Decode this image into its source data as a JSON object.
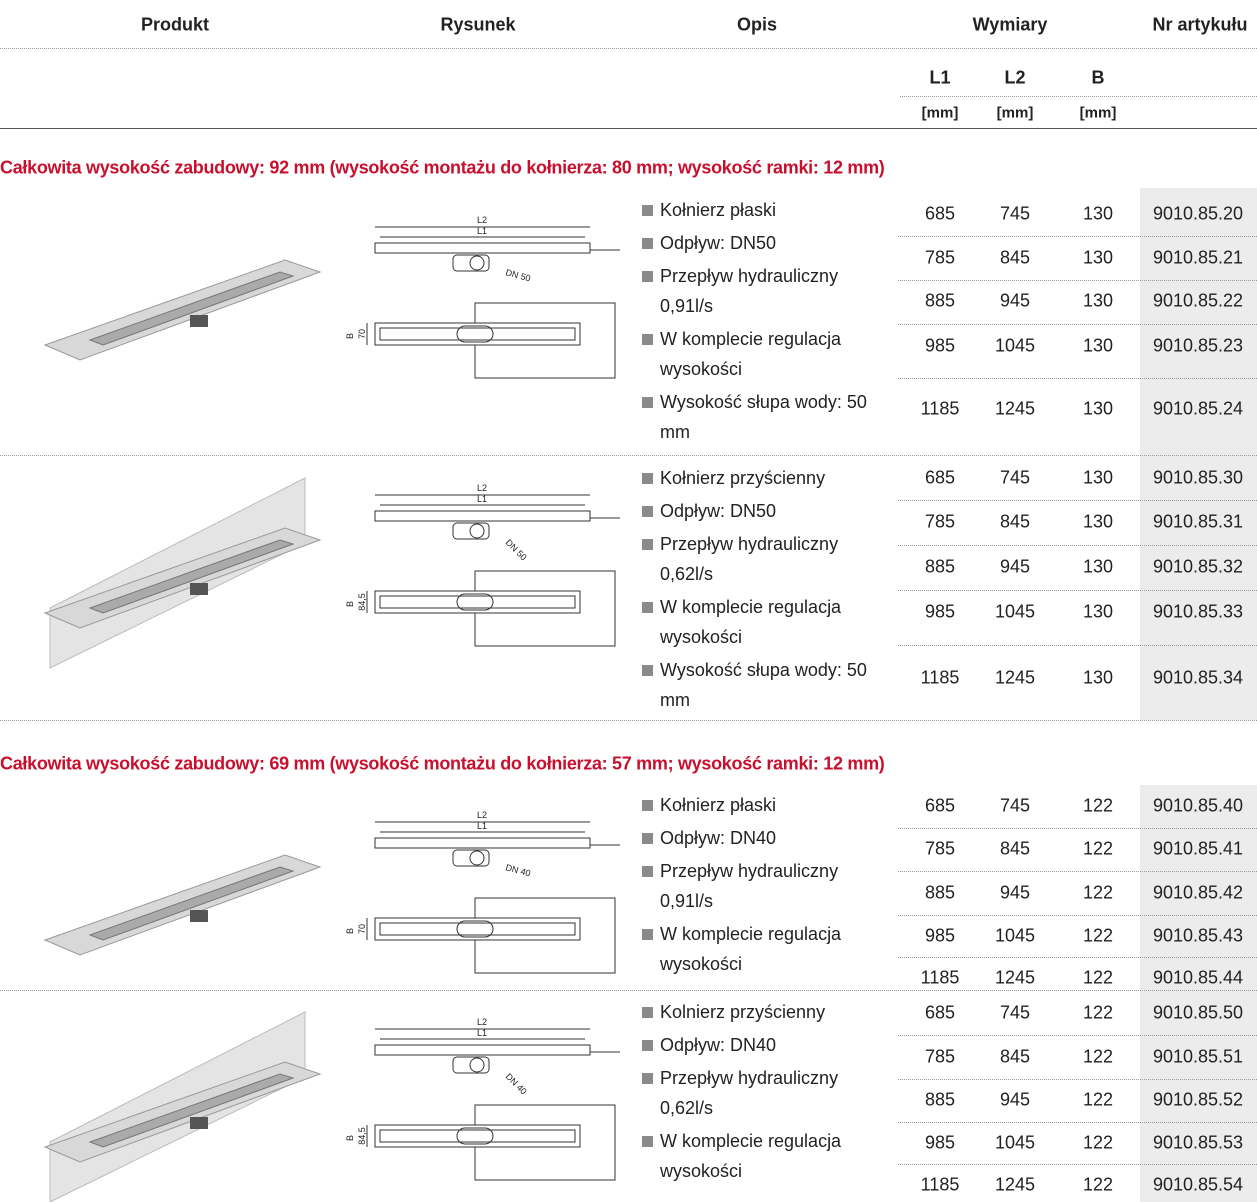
{
  "header": {
    "columns": [
      "Produkt",
      "Rysunek",
      "Opis",
      "Wymiary",
      "Nr artykułu"
    ],
    "dimensions": [
      {
        "name": "L1",
        "unit": "[mm]"
      },
      {
        "name": "L2",
        "unit": "[mm]"
      },
      {
        "name": "B",
        "unit": "[mm]"
      }
    ]
  },
  "sections": [
    {
      "title": "Całkowita wysokość zabudowy: 92 mm (wysokość montażu do kołnierza: 80 mm; wysokość ramki: 12 mm)",
      "groups": [
        {
          "description": [
            "Kołnierz płaski",
            "Odpływ: DN50",
            "Przepływ hydrauliczny 0,91l/s",
            "W komplecie regulacja wysokości",
            "Wysokość słupa wody: 50 mm"
          ],
          "drawing_labels": [
            "L2",
            "L1",
            "DN 50",
            "B",
            "70"
          ],
          "rows": [
            [
              685,
              745,
              130,
              "9010.85.20"
            ],
            [
              785,
              845,
              130,
              "9010.85.21"
            ],
            [
              885,
              945,
              130,
              "9010.85.22"
            ],
            [
              985,
              1045,
              130,
              "9010.85.23"
            ],
            [
              1185,
              1245,
              130,
              "9010.85.24"
            ]
          ]
        },
        {
          "description": [
            "Kołnierz przyścienny",
            "Odpływ: DN50",
            "Przepływ hydrauliczny 0,62l/s",
            "W komplecie regulacja wysokości",
            "Wysokość słupa wody: 50 mm"
          ],
          "drawing_labels": [
            "L2",
            "L1",
            "DN 50",
            "B",
            "84,5"
          ],
          "rows": [
            [
              685,
              745,
              130,
              "9010.85.30"
            ],
            [
              785,
              845,
              130,
              "9010.85.31"
            ],
            [
              885,
              945,
              130,
              "9010.85.32"
            ],
            [
              985,
              1045,
              130,
              "9010.85.33"
            ],
            [
              1185,
              1245,
              130,
              "9010.85.34"
            ]
          ]
        }
      ]
    },
    {
      "title": "Całkowita wysokość zabudowy: 69 mm (wysokość montażu do kołnierza: 57 mm; wysokość ramki: 12 mm)",
      "groups": [
        {
          "description": [
            "Kołnierz płaski",
            "Odpływ: DN40",
            "Przepływ hydrauliczny 0,91l/s",
            "W komplecie regulacja wysokości"
          ],
          "drawing_labels": [
            "L2",
            "L1",
            "DN 40",
            "B",
            "70"
          ],
          "rows": [
            [
              685,
              745,
              122,
              "9010.85.40"
            ],
            [
              785,
              845,
              122,
              "9010.85.41"
            ],
            [
              885,
              945,
              122,
              "9010.85.42"
            ],
            [
              985,
              1045,
              122,
              "9010.85.43"
            ],
            [
              1185,
              1245,
              122,
              "9010.85.44"
            ]
          ]
        },
        {
          "description": [
            "Kolnierz przyścienny",
            "Odpływ: DN40",
            "Przepływ hydrauliczny 0,62l/s",
            "W komplecie regulacja wysokości"
          ],
          "drawing_labels": [
            "L2",
            "L1",
            "DN 40",
            "B",
            "84,5"
          ],
          "rows": [
            [
              685,
              745,
              122,
              "9010.85.50"
            ],
            [
              785,
              845,
              122,
              "9010.85.51"
            ],
            [
              885,
              945,
              122,
              "9010.85.52"
            ],
            [
              985,
              1045,
              122,
              "9010.85.53"
            ],
            [
              1185,
              1245,
              122,
              "9010.85.54"
            ]
          ]
        }
      ]
    }
  ]
}
